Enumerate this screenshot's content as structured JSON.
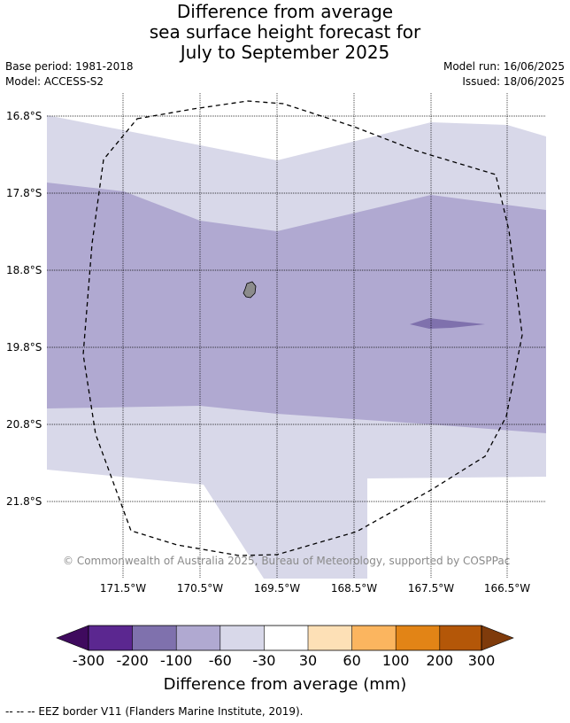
{
  "title": {
    "line1": "Difference from average",
    "line2": "sea surface height forecast for",
    "line3": "July to September 2025"
  },
  "meta": {
    "base_period": "Base period: 1981-2018",
    "model": "Model: ACCESS-S2",
    "model_run": "Model run: 16/06/2025",
    "issued": "Issued: 18/06/2025"
  },
  "map": {
    "lat_labels": [
      "16.8°S",
      "17.8°S",
      "18.8°S",
      "19.8°S",
      "20.8°S",
      "21.8°S"
    ],
    "lon_labels": [
      "171.5°W",
      "170.5°W",
      "169.5°W",
      "168.5°W",
      "167.5°W",
      "166.5°W"
    ],
    "copyright": "© Commonwealth of Australia 2025, Bureau of Meteorology, supported by COSPPac",
    "colors": {
      "band_-60_-30": "#d8d8e9",
      "band_-100_-60": "#b0a9d1",
      "band_-200_-100": "#7f71ad",
      "island": "#8c8c8c"
    }
  },
  "colorbar": {
    "title": "Difference from average (mm)",
    "ticks": [
      "-300",
      "-200",
      "-100",
      "-60",
      "-30",
      "30",
      "60",
      "100",
      "200",
      "300"
    ],
    "colors": [
      "#3f0a5e",
      "#5b2790",
      "#7f71ad",
      "#b0a9d1",
      "#d8d8e9",
      "#ffffff",
      "#fde0b6",
      "#fbb55f",
      "#e28416",
      "#b45708",
      "#7f3b0b"
    ]
  },
  "legend": {
    "eez_note": "--  --  -- EEZ border V11 (Flanders Marine Institute, 2019)."
  }
}
